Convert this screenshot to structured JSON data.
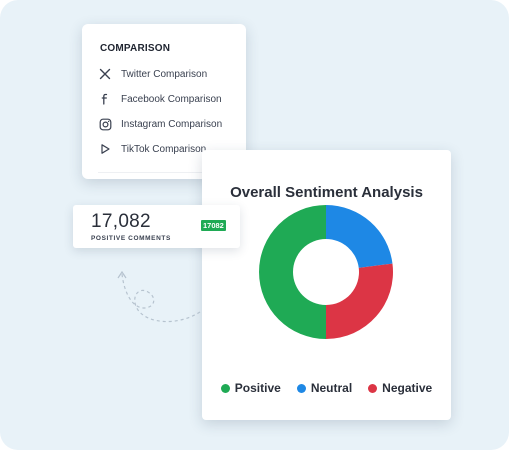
{
  "comparison_menu": {
    "title": "COMPARISON",
    "items": [
      {
        "label": "Twitter Comparison",
        "icon": "x-twitter-icon"
      },
      {
        "label": "Facebook Comparison",
        "icon": "facebook-icon"
      },
      {
        "label": "Instagram Comparison",
        "icon": "instagram-icon"
      },
      {
        "label": "TikTok Comparison",
        "icon": "play-icon"
      }
    ]
  },
  "positive_comments": {
    "value": "17,082",
    "label": "POSITIVE COMMENTS",
    "badge": "17082"
  },
  "sentiment": {
    "title": "Overall Sentiment Analysis",
    "legend": [
      {
        "label": "Positive",
        "color": "#1faa55"
      },
      {
        "label": "Neutral",
        "color": "#1e88e5"
      },
      {
        "label": "Negative",
        "color": "#dc3545"
      }
    ]
  },
  "chart_data": {
    "type": "pie",
    "title": "Overall Sentiment Analysis",
    "categories": [
      "Positive",
      "Neutral",
      "Negative"
    ],
    "values": [
      50,
      23,
      27
    ],
    "colors": [
      "#1faa55",
      "#1e88e5",
      "#dc3545"
    ],
    "donut": true,
    "legend": "bottom"
  }
}
